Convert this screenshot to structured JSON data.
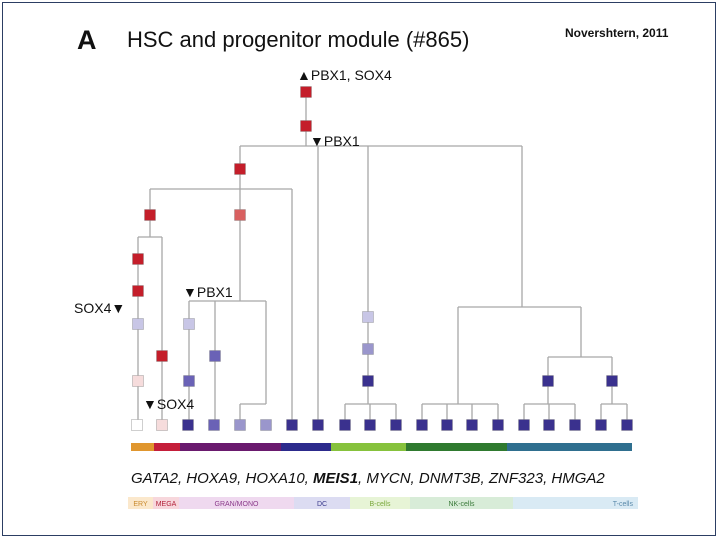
{
  "panel_label": "A",
  "title": "HSC and progenitor module (#865)",
  "citation": "Novershtern, 2011",
  "regulator_labels": [
    {
      "id": "top",
      "arrow": "▲",
      "text": "PBX1, SOX4",
      "arrow_first": true
    },
    {
      "id": "root",
      "arrow": "▼",
      "text": "PBX1",
      "arrow_first": true
    },
    {
      "id": "gran",
      "arrow": "▼",
      "text": "PBX1",
      "arrow_first": true
    },
    {
      "id": "left",
      "arrow": "▼",
      "text": "SOX4",
      "arrow_first": false
    },
    {
      "id": "bottom",
      "arrow": "▼",
      "text": "SOX4",
      "arrow_first": true
    }
  ],
  "genes": [
    {
      "text": "GATA2, ",
      "bold": false
    },
    {
      "text": "HOXA9, ",
      "bold": false
    },
    {
      "text": "HOXA10, ",
      "bold": false
    },
    {
      "text": "MEIS1",
      "bold": true
    },
    {
      "text": ", MYCN, ",
      "bold": false
    },
    {
      "text": "DNMT3B, ",
      "bold": false
    },
    {
      "text": "ZNF323, ",
      "bold": false
    },
    {
      "text": "HMGA2",
      "bold": false
    }
  ],
  "cell_types": [
    {
      "label": "ERY",
      "bar_color": "#e0962e",
      "legend_bg": "#fbe8cc",
      "text_color": "#c98a2e"
    },
    {
      "label": "MEGA",
      "bar_color": "#c41e3a",
      "legend_bg": "#f7d7dc",
      "text_color": "#b2233a"
    },
    {
      "label": "GRAN/MONO",
      "bar_color": "#6a1a6e",
      "legend_bg": "#efd9ef",
      "text_color": "#8a3a8a"
    },
    {
      "label": "DC",
      "bar_color": "#2c2a8c",
      "legend_bg": "#dcdcf2",
      "text_color": "#3a3a8c"
    },
    {
      "label": "B-cells",
      "bar_color": "#86c23c",
      "legend_bg": "#e7f4d6",
      "text_color": "#7aa83c"
    },
    {
      "label": "NK-cells",
      "bar_color": "#2f7a2f",
      "legend_bg": "#d8ecd8",
      "text_color": "#3a7a3a"
    },
    {
      "label": "T-cells",
      "bar_color": "#2f6f8f",
      "legend_bg": "#d9eaf4",
      "text_color": "#5a8aaa"
    }
  ],
  "colors": {
    "expr_high": "#c41e2a",
    "expr_mid_red": "#d96060",
    "expr_pale_red": "#f6dcdc",
    "expr_none": "#ffffff",
    "expr_pale_blue": "#c8c6e6",
    "expr_light_blue": "#9a96cc",
    "expr_blue": "#6a62b6",
    "expr_low": "#3a318e"
  }
}
